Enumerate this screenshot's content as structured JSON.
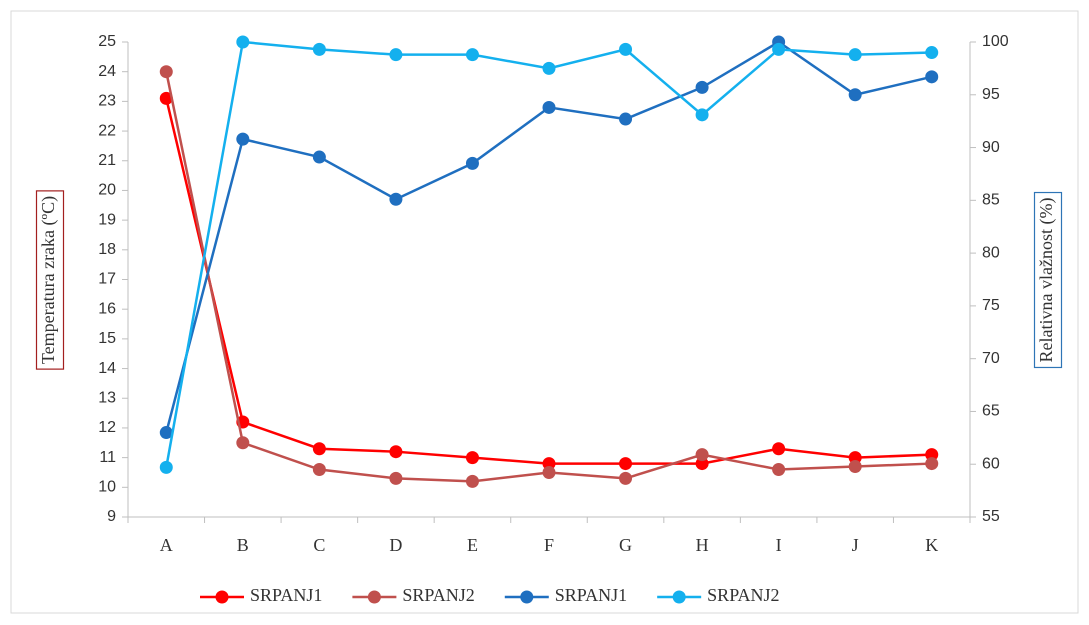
{
  "chart_data": {
    "type": "line",
    "categories": [
      "A",
      "B",
      "C",
      "D",
      "E",
      "F",
      "G",
      "H",
      "I",
      "J",
      "K"
    ],
    "ylabel": "Temperatura zraka (ºC)",
    "y2label": "Relativna vlažnost (%)",
    "ylim": [
      9,
      25
    ],
    "yticks": [
      9,
      10,
      11,
      12,
      13,
      14,
      15,
      16,
      17,
      18,
      19,
      20,
      21,
      22,
      23,
      24,
      25
    ],
    "y2lim": [
      55,
      100
    ],
    "y2ticks": [
      55,
      60,
      65,
      70,
      75,
      80,
      85,
      90,
      95,
      100
    ],
    "legend": "bottom",
    "series": [
      {
        "name": "SRPANJ1",
        "color": "#ff0000",
        "values": [
          23.1,
          12.2,
          11.3,
          11.2,
          11.0,
          10.8,
          10.8,
          10.8,
          11.3,
          11.0,
          11.1
        ]
      },
      {
        "name": "SRPANJ2",
        "color": "#c0504d",
        "values": [
          24.0,
          11.5,
          10.6,
          10.3,
          10.2,
          10.5,
          10.3,
          11.1,
          10.6,
          10.7,
          10.8
        ]
      },
      {
        "name": "SRPANJ1",
        "color": "#1f6fc0",
        "axis": "y2",
        "values": [
          63.0,
          90.8,
          89.1,
          85.1,
          88.5,
          93.8,
          92.7,
          95.7,
          100,
          95.0,
          96.7
        ]
      },
      {
        "name": "SRPANJ2",
        "color": "#14b0ee",
        "axis": "y2",
        "values": [
          59.7,
          100,
          99.3,
          98.8,
          98.8,
          97.5,
          99.3,
          93.1,
          99.3,
          98.8,
          99.0
        ]
      }
    ]
  }
}
